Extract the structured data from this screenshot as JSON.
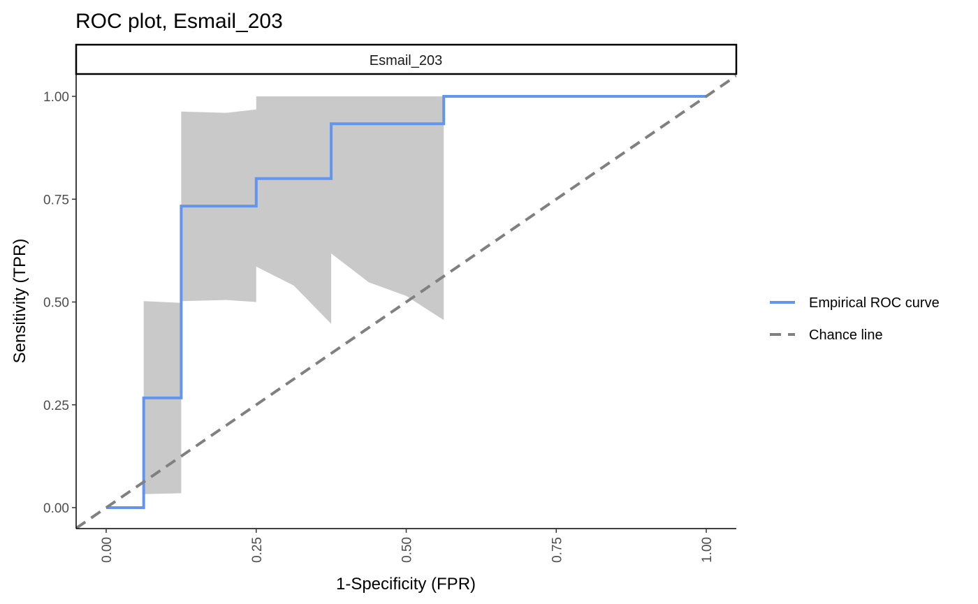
{
  "chart_data": {
    "type": "line",
    "title": "ROC plot, Esmail_203",
    "facet_label": "Esmail_203",
    "xlabel": "1-Specificity (FPR)",
    "ylabel": "Sensitivity (TPR)",
    "xlim": [
      -0.05,
      1.05
    ],
    "ylim": [
      -0.05,
      1.05
    ],
    "x_ticks": [
      0,
      0.25,
      0.5,
      0.75,
      1
    ],
    "x_tick_labels": [
      "0.00",
      "0.25",
      "0.50",
      "0.75",
      "1.00"
    ],
    "y_ticks": [
      0,
      0.25,
      0.5,
      0.75,
      1
    ],
    "y_tick_labels": [
      "0.00",
      "0.25",
      "0.50",
      "0.75",
      "1.00"
    ],
    "grid": false,
    "legend_position": "right",
    "series": [
      {
        "name": "Empirical ROC curve",
        "color": "#6495ED",
        "style": "solid",
        "x": [
          0,
          0.0625,
          0.0625,
          0.125,
          0.125,
          0.25,
          0.25,
          0.375,
          0.375,
          0.5625,
          0.5625,
          1
        ],
        "y": [
          0,
          0,
          0.2667,
          0.2667,
          0.7333,
          0.7333,
          0.8,
          0.8,
          0.9333,
          0.9333,
          1,
          1
        ]
      },
      {
        "name": "Chance line",
        "color": "#808080",
        "style": "dashed",
        "x": [
          -0.05,
          1.05
        ],
        "y": [
          -0.05,
          1.05
        ]
      }
    ],
    "confidence_band": {
      "color": "#C9C9C9",
      "x": [
        0.0625,
        0.125,
        0.125,
        0.2,
        0.25,
        0.25,
        0.3125,
        0.375,
        0.375,
        0.4375,
        0.5,
        0.5625
      ],
      "lower": [
        0.033,
        0.035,
        0.502,
        0.505,
        0.5,
        0.586,
        0.54,
        0.447,
        0.618,
        0.548,
        0.515,
        0.456
      ],
      "upper": [
        0.502,
        0.498,
        0.963,
        0.96,
        0.968,
        1.0,
        1.0,
        1.0,
        1.0,
        1.0,
        1.0,
        1.0
      ]
    }
  }
}
